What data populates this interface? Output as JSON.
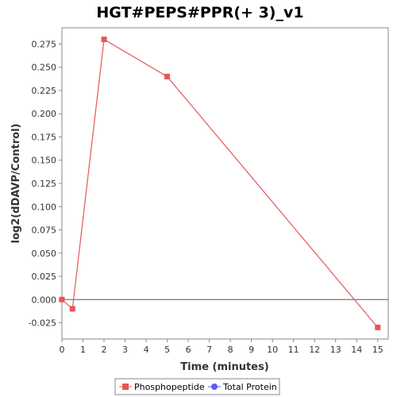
{
  "chart_data": {
    "type": "line",
    "title": "HGT#PEPS#PPR(+ 3)_v1",
    "xlabel": "Time (minutes)",
    "ylabel": "log2(dDAVP/Control)",
    "xlim": [
      0,
      15.5
    ],
    "ylim": [
      -0.0425,
      0.2925
    ],
    "x_ticks": [
      0,
      1,
      2,
      3,
      4,
      5,
      6,
      7,
      8,
      9,
      10,
      11,
      12,
      13,
      14,
      15
    ],
    "y_ticks": [
      -0.025,
      0.0,
      0.025,
      0.05,
      0.075,
      0.1,
      0.125,
      0.15,
      0.175,
      0.2,
      0.225,
      0.25,
      0.275
    ],
    "y_tick_labels": [
      "-0.025",
      "0.000",
      "0.025",
      "0.050",
      "0.075",
      "0.100",
      "0.125",
      "0.150",
      "0.175",
      "0.200",
      "0.225",
      "0.250",
      "0.275"
    ],
    "grid": false,
    "zero_line": true,
    "legend_position": "bottom",
    "series": [
      {
        "name": "Phosphopeptide",
        "color": "#e8555a",
        "marker": "square",
        "x": [
          0,
          0.5,
          2,
          5,
          15
        ],
        "y": [
          0.0,
          -0.01,
          0.28,
          0.24,
          -0.03
        ]
      },
      {
        "name": "Total Protein",
        "color": "#5a5aee",
        "marker": "circle",
        "x": [],
        "y": []
      }
    ]
  }
}
